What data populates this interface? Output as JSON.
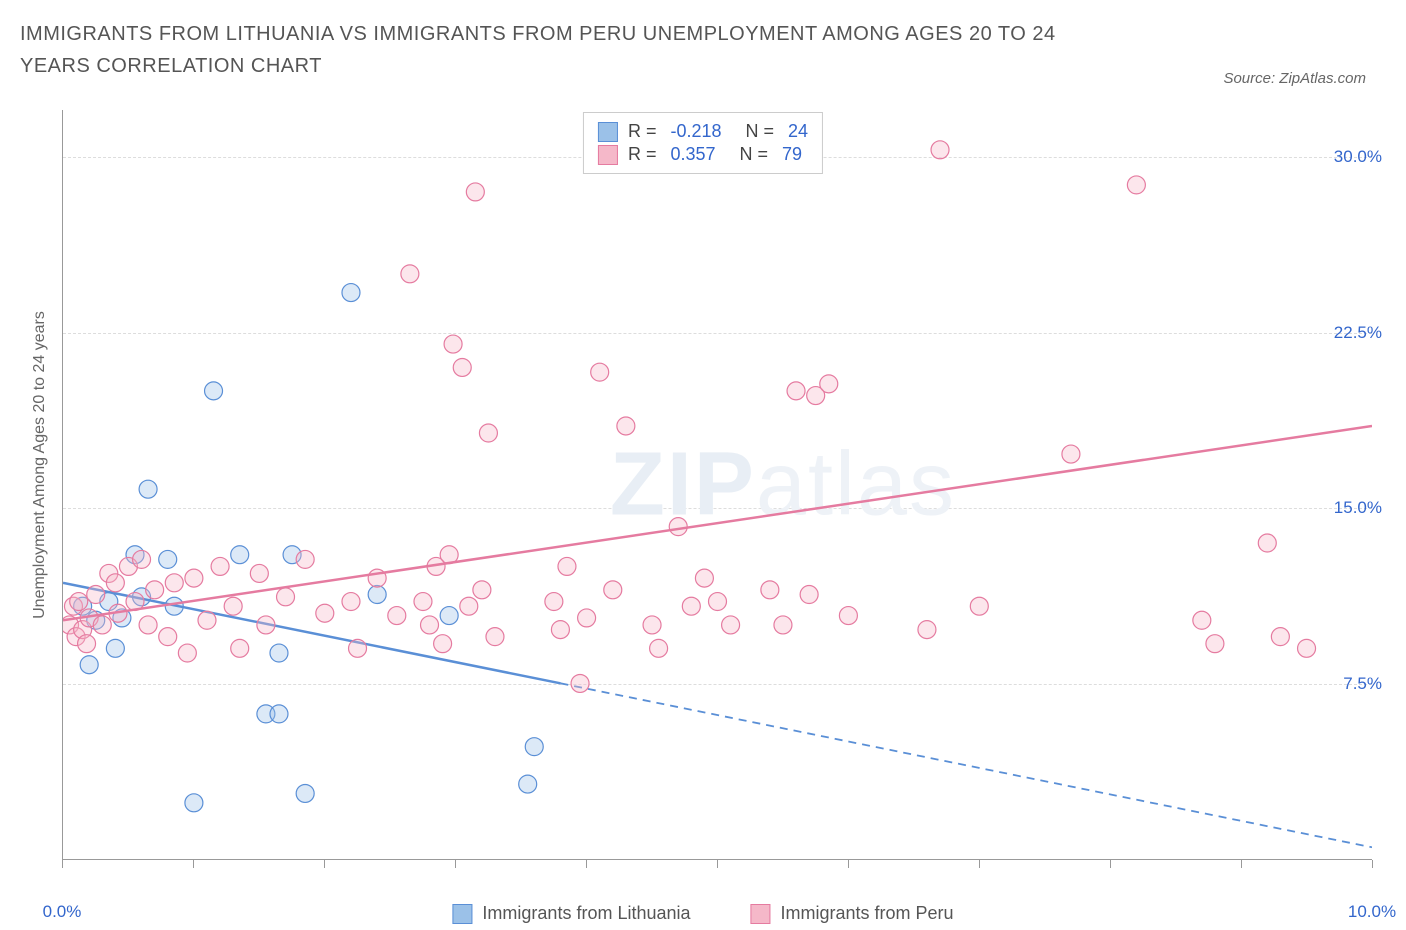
{
  "title": "IMMIGRANTS FROM LITHUANIA VS IMMIGRANTS FROM PERU UNEMPLOYMENT AMONG AGES 20 TO 24 YEARS CORRELATION CHART",
  "source_label": "Source: ZipAtlas.com",
  "y_axis_label": "Unemployment Among Ages 20 to 24 years",
  "watermark_bold": "ZIP",
  "watermark_thin": "atlas",
  "chart": {
    "type": "scatter",
    "xlim": [
      0,
      10
    ],
    "ylim": [
      0,
      32
    ],
    "x_ticks": [
      0,
      1,
      2,
      3,
      4,
      5,
      6,
      7,
      8,
      9,
      10
    ],
    "x_tick_labels": {
      "0": "0.0%",
      "10": "10.0%"
    },
    "y_ticks": [
      7.5,
      15.0,
      22.5,
      30.0
    ],
    "y_tick_labels": [
      "7.5%",
      "15.0%",
      "22.5%",
      "30.0%"
    ],
    "x_tick_label_color": "#3366cc",
    "y_tick_label_color": "#3366cc",
    "grid_color": "#dddddd",
    "background_color": "#ffffff",
    "axis_label_fontsize": 16,
    "tick_label_fontsize": 17,
    "marker_radius": 9,
    "series": [
      {
        "name": "Immigrants from Lithuania",
        "color_fill": "#9bc1e8",
        "color_stroke": "#5a8fd6",
        "R": "-0.218",
        "N": "24",
        "trend": {
          "x1": 0,
          "y1": 11.8,
          "x2": 10,
          "y2": 0.5,
          "solid_until_x": 3.8
        },
        "points": [
          [
            0.15,
            10.8
          ],
          [
            0.2,
            8.3
          ],
          [
            0.25,
            10.2
          ],
          [
            0.35,
            11.0
          ],
          [
            0.4,
            9.0
          ],
          [
            0.45,
            10.3
          ],
          [
            0.55,
            13.0
          ],
          [
            0.6,
            11.2
          ],
          [
            0.65,
            15.8
          ],
          [
            0.8,
            12.8
          ],
          [
            0.85,
            10.8
          ],
          [
            1.0,
            2.4
          ],
          [
            1.15,
            20.0
          ],
          [
            1.35,
            13.0
          ],
          [
            1.55,
            6.2
          ],
          [
            1.65,
            8.8
          ],
          [
            1.65,
            6.2
          ],
          [
            1.75,
            13.0
          ],
          [
            1.85,
            2.8
          ],
          [
            2.2,
            24.2
          ],
          [
            2.4,
            11.3
          ],
          [
            2.95,
            10.4
          ],
          [
            3.55,
            3.2
          ],
          [
            3.6,
            4.8
          ]
        ]
      },
      {
        "name": "Immigrants from Peru",
        "color_fill": "#f5b8c9",
        "color_stroke": "#e57ba0",
        "R": "0.357",
        "N": "79",
        "trend": {
          "x1": 0,
          "y1": 10.2,
          "x2": 10,
          "y2": 18.5,
          "solid_until_x": 10
        },
        "points": [
          [
            0.05,
            10.0
          ],
          [
            0.1,
            9.5
          ],
          [
            0.08,
            10.8
          ],
          [
            0.15,
            9.8
          ],
          [
            0.12,
            11.0
          ],
          [
            0.2,
            10.3
          ],
          [
            0.18,
            9.2
          ],
          [
            0.25,
            11.3
          ],
          [
            0.3,
            10.0
          ],
          [
            0.35,
            12.2
          ],
          [
            0.4,
            11.8
          ],
          [
            0.42,
            10.5
          ],
          [
            0.5,
            12.5
          ],
          [
            0.55,
            11.0
          ],
          [
            0.6,
            12.8
          ],
          [
            0.65,
            10.0
          ],
          [
            0.7,
            11.5
          ],
          [
            0.8,
            9.5
          ],
          [
            0.85,
            11.8
          ],
          [
            0.95,
            8.8
          ],
          [
            1.0,
            12.0
          ],
          [
            1.1,
            10.2
          ],
          [
            1.2,
            12.5
          ],
          [
            1.3,
            10.8
          ],
          [
            1.35,
            9.0
          ],
          [
            1.5,
            12.2
          ],
          [
            1.55,
            10.0
          ],
          [
            1.7,
            11.2
          ],
          [
            1.85,
            12.8
          ],
          [
            2.0,
            10.5
          ],
          [
            2.2,
            11.0
          ],
          [
            2.25,
            9.0
          ],
          [
            2.4,
            12.0
          ],
          [
            2.55,
            10.4
          ],
          [
            2.65,
            25.0
          ],
          [
            2.75,
            11.0
          ],
          [
            2.8,
            10.0
          ],
          [
            2.85,
            12.5
          ],
          [
            2.9,
            9.2
          ],
          [
            2.95,
            13.0
          ],
          [
            2.98,
            22.0
          ],
          [
            3.05,
            21.0
          ],
          [
            3.1,
            10.8
          ],
          [
            3.15,
            28.5
          ],
          [
            3.2,
            11.5
          ],
          [
            3.25,
            18.2
          ],
          [
            3.3,
            9.5
          ],
          [
            3.75,
            11.0
          ],
          [
            3.8,
            9.8
          ],
          [
            3.85,
            12.5
          ],
          [
            3.95,
            7.5
          ],
          [
            4.0,
            10.3
          ],
          [
            4.1,
            20.8
          ],
          [
            4.2,
            11.5
          ],
          [
            4.3,
            18.5
          ],
          [
            4.5,
            10.0
          ],
          [
            4.55,
            9.0
          ],
          [
            4.7,
            14.2
          ],
          [
            4.8,
            10.8
          ],
          [
            4.9,
            12.0
          ],
          [
            5.0,
            11.0
          ],
          [
            5.1,
            10.0
          ],
          [
            5.4,
            11.5
          ],
          [
            5.5,
            10.0
          ],
          [
            5.6,
            20.0
          ],
          [
            5.7,
            11.3
          ],
          [
            5.75,
            19.8
          ],
          [
            5.85,
            20.3
          ],
          [
            6.0,
            10.4
          ],
          [
            6.6,
            9.8
          ],
          [
            6.7,
            30.3
          ],
          [
            7.0,
            10.8
          ],
          [
            7.7,
            17.3
          ],
          [
            8.2,
            28.8
          ],
          [
            8.7,
            10.2
          ],
          [
            8.8,
            9.2
          ],
          [
            9.2,
            13.5
          ],
          [
            9.3,
            9.5
          ],
          [
            9.5,
            9.0
          ]
        ]
      }
    ]
  },
  "legend_top": {
    "rows": [
      {
        "swatch_fill": "#9bc1e8",
        "swatch_stroke": "#5a8fd6",
        "r_label": "R =",
        "r_value": "-0.218",
        "n_label": "N =",
        "n_value": "24"
      },
      {
        "swatch_fill": "#f5b8c9",
        "swatch_stroke": "#e57ba0",
        "r_label": "R =",
        "r_value": "0.357",
        "n_label": "N =",
        "n_value": "79"
      }
    ]
  },
  "legend_bottom": {
    "items": [
      {
        "swatch_fill": "#9bc1e8",
        "swatch_stroke": "#5a8fd6",
        "label": "Immigrants from Lithuania"
      },
      {
        "swatch_fill": "#f5b8c9",
        "swatch_stroke": "#e57ba0",
        "label": "Immigrants from Peru"
      }
    ]
  }
}
